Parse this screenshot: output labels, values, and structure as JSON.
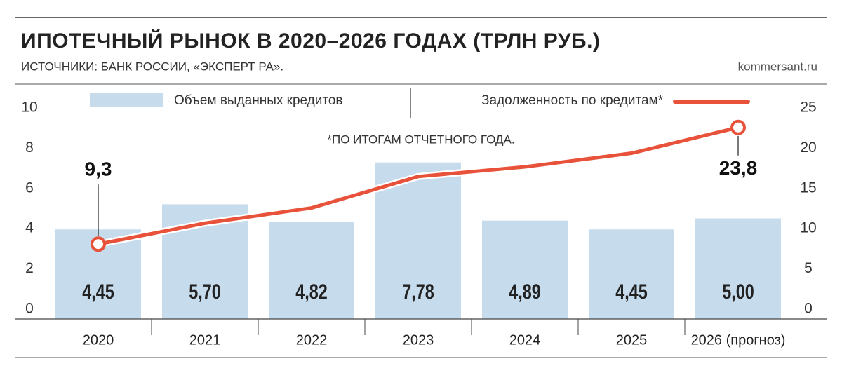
{
  "chart_data": {
    "type": "bar",
    "title": "ИПОТЕЧНЫЙ РЫНОК В 2020–2026 ГОДАХ (ТРЛН РУБ.)",
    "subtitle": "ИСТОЧНИКИ: БАНК РОССИИ, «ЭКСПЕРТ РА».",
    "source": "kommersant.ru",
    "annotation": "*ПО ИТОГАМ ОТЧЕТНОГО ГОДА.",
    "categories": [
      "2020",
      "2021",
      "2022",
      "2023",
      "2024",
      "2025",
      "2026 (прогноз)"
    ],
    "series": [
      {
        "name": "Объем выданных кредитов",
        "type": "bar",
        "color": "#c6dbec",
        "values": [
          4.45,
          5.7,
          4.82,
          7.78,
          4.89,
          4.45,
          5.0
        ],
        "value_labels": [
          "4,45",
          "5,70",
          "4,82",
          "7,78",
          "4,89",
          "4,45",
          "5,00"
        ]
      },
      {
        "name": "Задолженность по кредитам*",
        "type": "line",
        "axis": "y2",
        "color": "#e8523a",
        "values": [
          9.3,
          11.9,
          13.8,
          17.7,
          18.9,
          20.6,
          23.8
        ],
        "value_labels": [
          "9,3",
          null,
          null,
          null,
          null,
          null,
          "23,8"
        ]
      }
    ],
    "ylim": [
      0,
      10
    ],
    "yticks": [
      0,
      2,
      4,
      6,
      8,
      10
    ],
    "y2lim": [
      0,
      25
    ],
    "y2ticks": [
      0,
      5,
      10,
      15,
      20,
      25
    ]
  }
}
